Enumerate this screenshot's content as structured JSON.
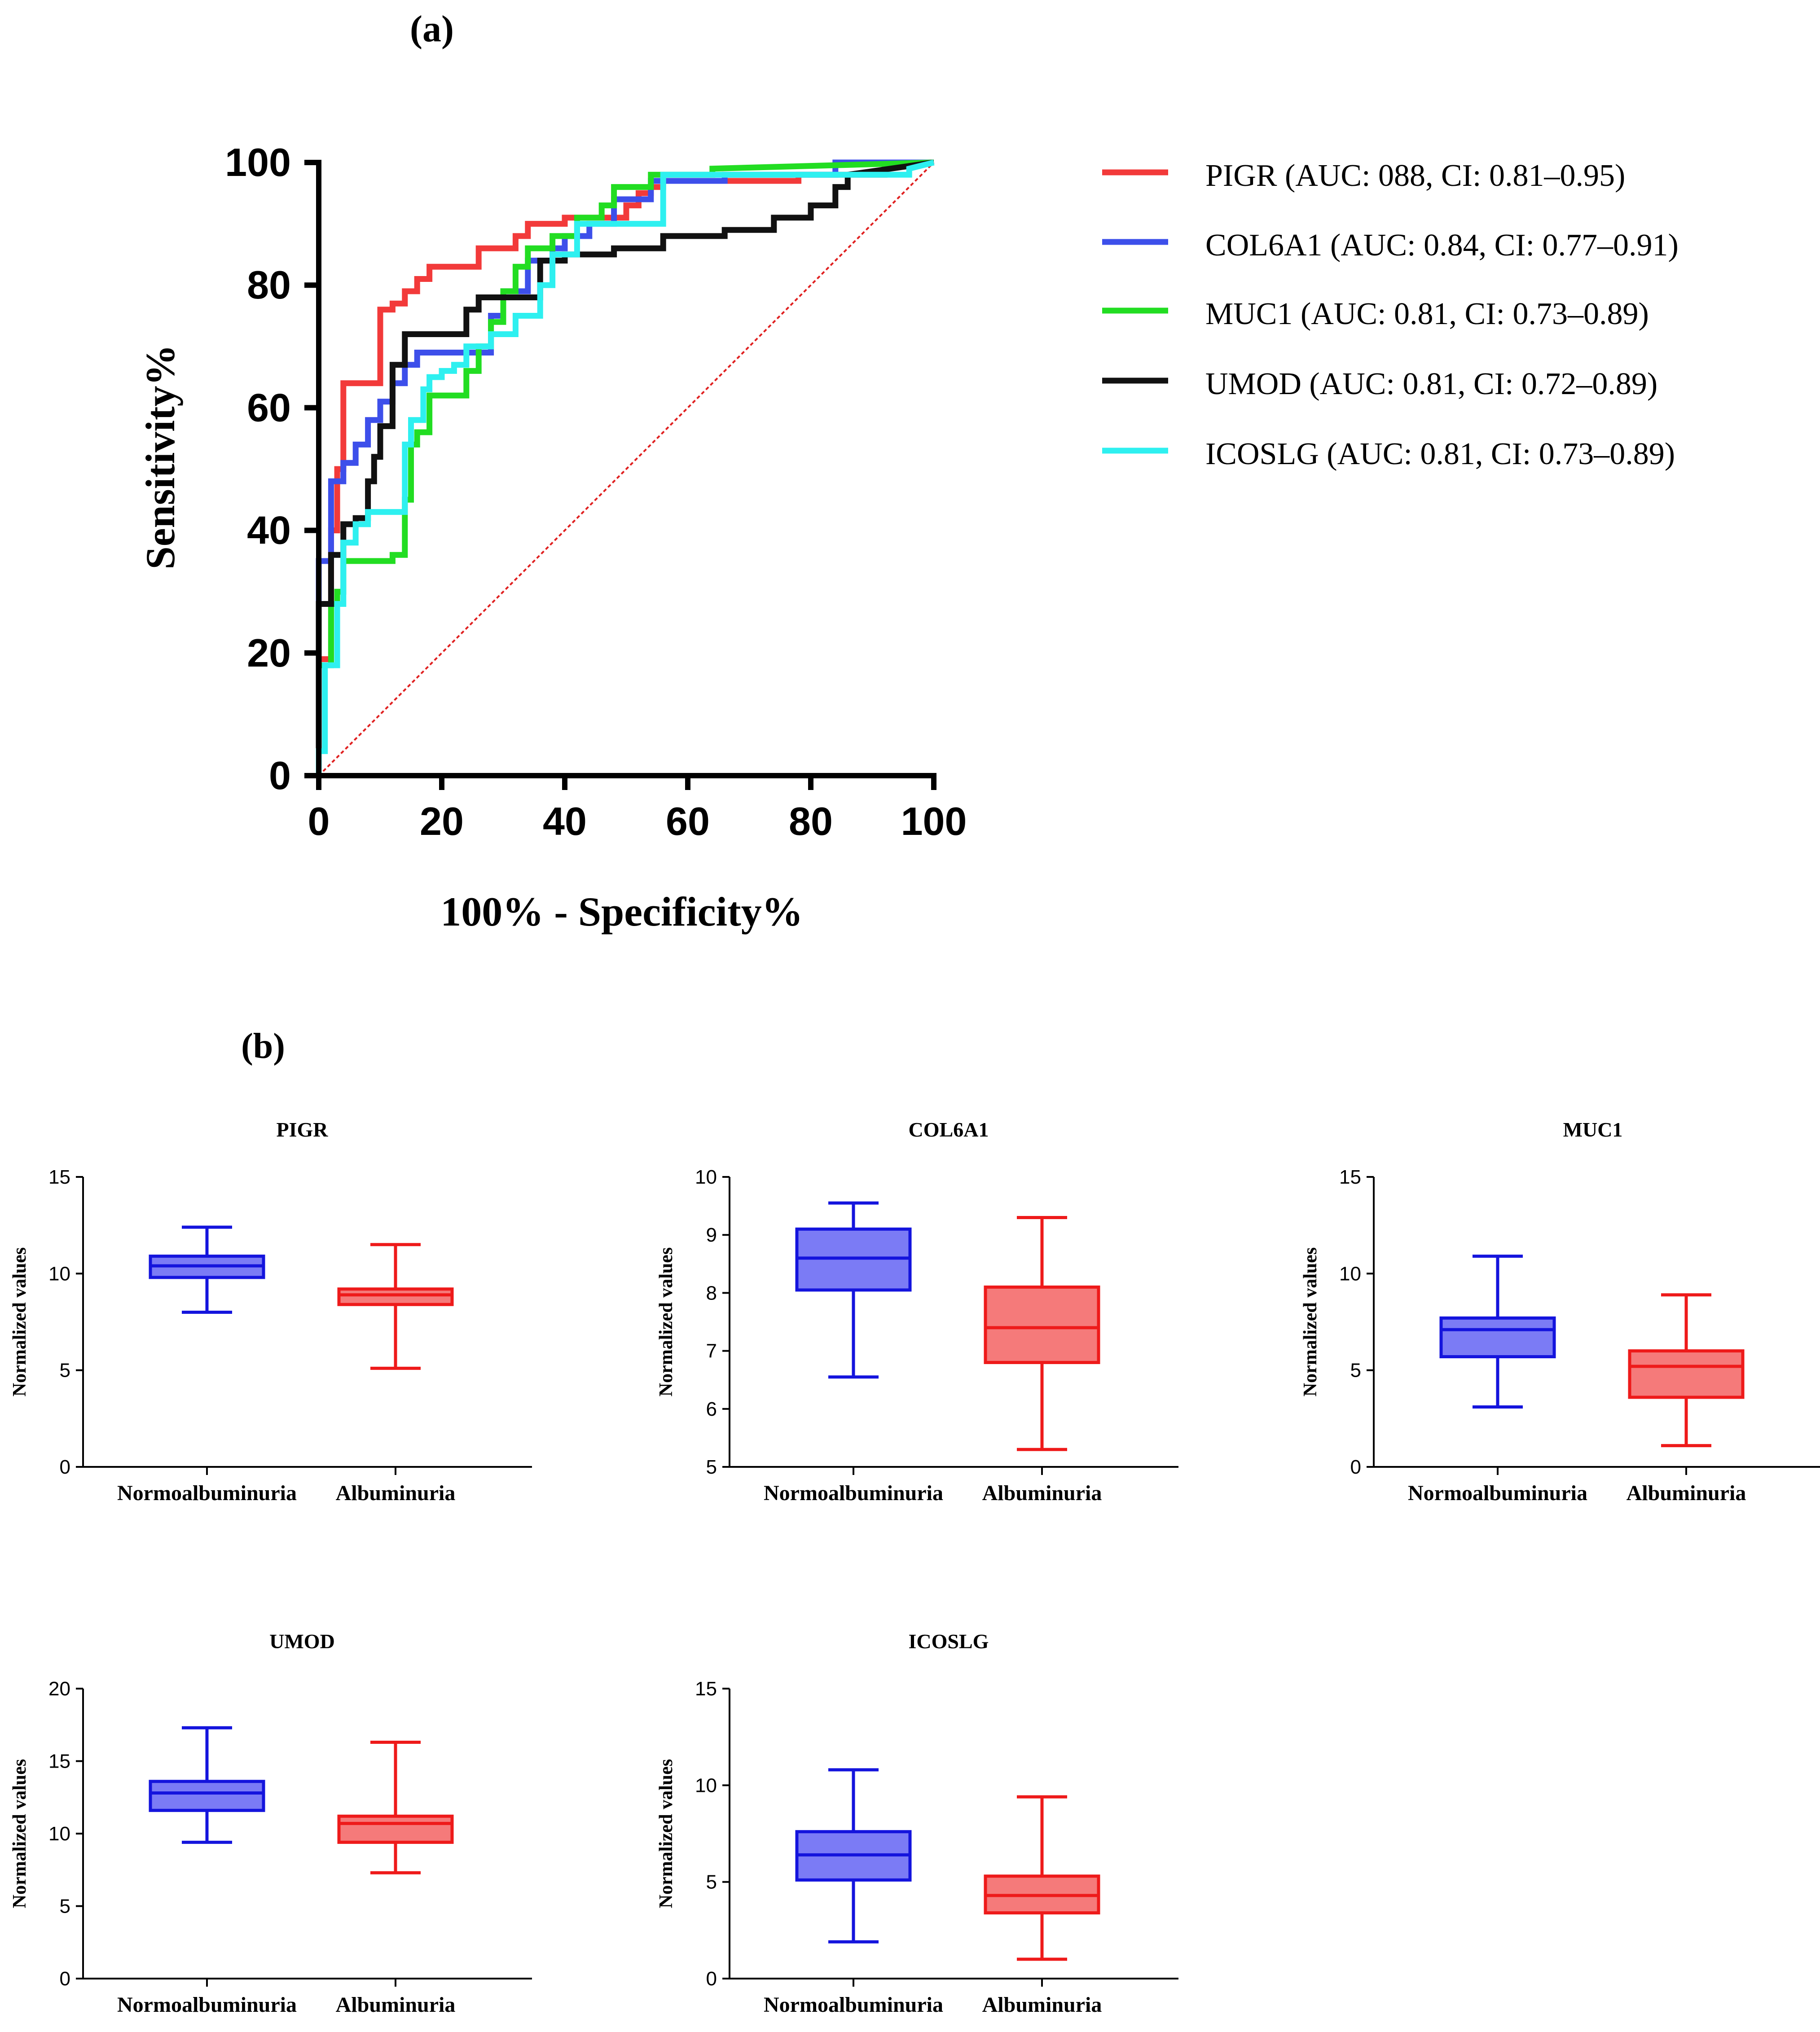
{
  "panel_labels": {
    "a": "(a)",
    "b": "(b)"
  },
  "chart_data": [
    {
      "type": "line",
      "chart_id": "roc",
      "title": "",
      "xlabel": "100% - Specificity%",
      "ylabel": "Sensitivity%",
      "xlim": [
        0,
        100
      ],
      "ylim": [
        0,
        100
      ],
      "xticks": [
        0,
        20,
        40,
        60,
        80,
        100
      ],
      "yticks": [
        0,
        20,
        40,
        60,
        80,
        100
      ],
      "grid": false,
      "legend_position": "right",
      "reference_line": {
        "name": "chance",
        "color": "#e02020",
        "x": [
          0,
          100
        ],
        "y": [
          0,
          100
        ]
      },
      "series": [
        {
          "name": "PIGR",
          "label": "PIGR (AUC: 088, CI: 0.81–0.95)",
          "color": "#f23a3a",
          "x": [
            0,
            0,
            2,
            2,
            3,
            3,
            4,
            4,
            10,
            10,
            12,
            12,
            14,
            14,
            16,
            16,
            18,
            18,
            26,
            26,
            32,
            32,
            34,
            34,
            40,
            40,
            50,
            50,
            52,
            52,
            54,
            54,
            56,
            56,
            78,
            78,
            92,
            92,
            100
          ],
          "y": [
            0,
            19,
            19,
            40,
            40,
            50,
            50,
            64,
            64,
            76,
            76,
            77,
            77,
            79,
            79,
            81,
            81,
            83,
            83,
            86,
            86,
            88,
            88,
            90,
            90,
            91,
            91,
            93,
            93,
            95,
            95,
            96,
            96,
            97,
            97,
            98,
            98,
            99,
            100
          ]
        },
        {
          "name": "COL6A1",
          "label": "COL6A1 (AUC: 0.84, CI: 0.77–0.91)",
          "color": "#3d4fea",
          "x": [
            0,
            0,
            2,
            2,
            4,
            4,
            6,
            6,
            8,
            8,
            10,
            10,
            12,
            12,
            14,
            14,
            16,
            16,
            28,
            28,
            30,
            30,
            34,
            34,
            38,
            38,
            40,
            40,
            44,
            44,
            48,
            48,
            54,
            54,
            66,
            66,
            84,
            84,
            100
          ],
          "y": [
            0,
            35,
            35,
            48,
            48,
            51,
            51,
            54,
            54,
            58,
            58,
            61,
            61,
            64,
            64,
            67,
            67,
            69,
            69,
            75,
            75,
            79,
            79,
            84,
            84,
            86,
            86,
            88,
            88,
            90,
            90,
            94,
            94,
            97,
            97,
            98,
            98,
            100,
            100
          ]
        },
        {
          "name": "MUC1",
          "label": "MUC1 (AUC: 0.81, CI: 0.73–0.89)",
          "color": "#22dd22",
          "x": [
            0,
            0,
            2,
            2,
            3,
            3,
            4,
            4,
            12,
            12,
            14,
            14,
            15,
            15,
            16,
            16,
            18,
            18,
            24,
            24,
            26,
            26,
            28,
            28,
            30,
            30,
            32,
            32,
            34,
            34,
            38,
            38,
            42,
            42,
            46,
            46,
            48,
            48,
            54,
            54,
            64,
            64,
            100
          ],
          "y": [
            0,
            18,
            18,
            28,
            28,
            30,
            30,
            35,
            35,
            36,
            36,
            45,
            45,
            54,
            54,
            56,
            56,
            62,
            62,
            66,
            66,
            70,
            70,
            74,
            74,
            79,
            79,
            83,
            83,
            86,
            86,
            88,
            88,
            91,
            91,
            93,
            93,
            96,
            96,
            98,
            98,
            99,
            100
          ]
        },
        {
          "name": "UMOD",
          "label": "UMOD (AUC: 0.81, CI: 0.72–0.89)",
          "color": "#111111",
          "x": [
            0,
            0,
            2,
            2,
            4,
            4,
            6,
            6,
            8,
            8,
            9,
            9,
            10,
            10,
            12,
            12,
            14,
            14,
            24,
            24,
            26,
            26,
            36,
            36,
            40,
            40,
            48,
            48,
            56,
            56,
            66,
            66,
            74,
            74,
            80,
            80,
            84,
            84,
            86,
            86,
            100
          ],
          "y": [
            0,
            28,
            28,
            36,
            36,
            41,
            41,
            42,
            42,
            48,
            48,
            52,
            52,
            57,
            57,
            67,
            67,
            72,
            72,
            76,
            76,
            78,
            78,
            84,
            84,
            85,
            85,
            86,
            86,
            88,
            88,
            89,
            89,
            91,
            91,
            93,
            93,
            96,
            96,
            98,
            100
          ]
        },
        {
          "name": "ICOSLG",
          "label": "ICOSLG (AUC: 0.81, CI: 0.73–0.89)",
          "color": "#2ef0f0",
          "x": [
            0,
            0,
            1,
            1,
            3,
            3,
            4,
            4,
            6,
            6,
            8,
            8,
            14,
            14,
            15,
            15,
            17,
            17,
            18,
            18,
            20,
            20,
            22,
            22,
            24,
            24,
            28,
            28,
            32,
            32,
            36,
            36,
            38,
            38,
            42,
            42,
            56,
            56,
            96,
            96,
            100
          ],
          "y": [
            0,
            4,
            4,
            18,
            18,
            28,
            28,
            38,
            38,
            41,
            41,
            43,
            43,
            54,
            54,
            58,
            58,
            63,
            63,
            65,
            65,
            66,
            66,
            67,
            67,
            70,
            70,
            72,
            72,
            75,
            75,
            80,
            80,
            85,
            85,
            90,
            90,
            98,
            98,
            99,
            100
          ]
        }
      ]
    },
    {
      "type": "box",
      "chart_id": "box-pigr",
      "title": "PIGR",
      "xlabel": "",
      "ylabel": "Normalized values",
      "categories": [
        "Normoalbuminuria",
        "Albuminuria"
      ],
      "ylim": [
        0,
        15
      ],
      "yticks": [
        0,
        5,
        10,
        15
      ],
      "series": [
        {
          "name": "Normoalbuminuria",
          "color": "#1414dd",
          "fill": "#7b7bf5",
          "min": 8.0,
          "q1": 9.8,
          "median": 10.4,
          "q3": 10.9,
          "max": 12.4
        },
        {
          "name": "Albuminuria",
          "color": "#ee1a1a",
          "fill": "#f57a7a",
          "min": 5.1,
          "q1": 8.4,
          "median": 8.9,
          "q3": 9.2,
          "max": 11.5
        }
      ]
    },
    {
      "type": "box",
      "chart_id": "box-col6a1",
      "title": "COL6A1",
      "xlabel": "",
      "ylabel": "Normalized values",
      "categories": [
        "Normoalbuminuria",
        "Albuminuria"
      ],
      "ylim": [
        5,
        10
      ],
      "yticks": [
        5,
        6,
        7,
        8,
        9,
        10
      ],
      "series": [
        {
          "name": "Normoalbuminuria",
          "color": "#1414dd",
          "fill": "#7b7bf5",
          "min": 6.55,
          "q1": 8.05,
          "median": 8.6,
          "q3": 9.1,
          "max": 9.55
        },
        {
          "name": "Albuminuria",
          "color": "#ee1a1a",
          "fill": "#f57a7a",
          "min": 5.3,
          "q1": 6.8,
          "median": 7.4,
          "q3": 8.1,
          "max": 9.3
        }
      ]
    },
    {
      "type": "box",
      "chart_id": "box-muc1",
      "title": "MUC1",
      "xlabel": "",
      "ylabel": "Normalized values",
      "categories": [
        "Normoalbuminuria",
        "Albuminuria"
      ],
      "ylim": [
        0,
        15
      ],
      "yticks": [
        0,
        5,
        10,
        15
      ],
      "series": [
        {
          "name": "Normoalbuminuria",
          "color": "#1414dd",
          "fill": "#7b7bf5",
          "min": 3.1,
          "q1": 5.7,
          "median": 7.1,
          "q3": 7.7,
          "max": 10.9
        },
        {
          "name": "Albuminuria",
          "color": "#ee1a1a",
          "fill": "#f57a7a",
          "min": 1.1,
          "q1": 3.6,
          "median": 5.2,
          "q3": 6.0,
          "max": 8.9
        }
      ]
    },
    {
      "type": "box",
      "chart_id": "box-umod",
      "title": "UMOD",
      "xlabel": "",
      "ylabel": "Normalized values",
      "categories": [
        "Normoalbuminuria",
        "Albuminuria"
      ],
      "ylim": [
        0,
        20
      ],
      "yticks": [
        0,
        5,
        10,
        15,
        20
      ],
      "series": [
        {
          "name": "Normoalbuminuria",
          "color": "#1414dd",
          "fill": "#7b7bf5",
          "min": 9.4,
          "q1": 11.6,
          "median": 12.8,
          "q3": 13.6,
          "max": 17.3
        },
        {
          "name": "Albuminuria",
          "color": "#ee1a1a",
          "fill": "#f57a7a",
          "min": 7.3,
          "q1": 9.4,
          "median": 10.7,
          "q3": 11.2,
          "max": 16.3
        }
      ]
    },
    {
      "type": "box",
      "chart_id": "box-icoslg",
      "title": "ICOSLG",
      "xlabel": "",
      "ylabel": "Normalized values",
      "categories": [
        "Normoalbuminuria",
        "Albuminuria"
      ],
      "ylim": [
        0,
        15
      ],
      "yticks": [
        0,
        5,
        10,
        15
      ],
      "series": [
        {
          "name": "Normoalbuminuria",
          "color": "#1414dd",
          "fill": "#7b7bf5",
          "min": 1.9,
          "q1": 5.1,
          "median": 6.4,
          "q3": 7.6,
          "max": 10.8
        },
        {
          "name": "Albuminuria",
          "color": "#ee1a1a",
          "fill": "#f57a7a",
          "min": 1.0,
          "q1": 3.4,
          "median": 4.3,
          "q3": 5.3,
          "max": 9.4
        }
      ]
    }
  ]
}
